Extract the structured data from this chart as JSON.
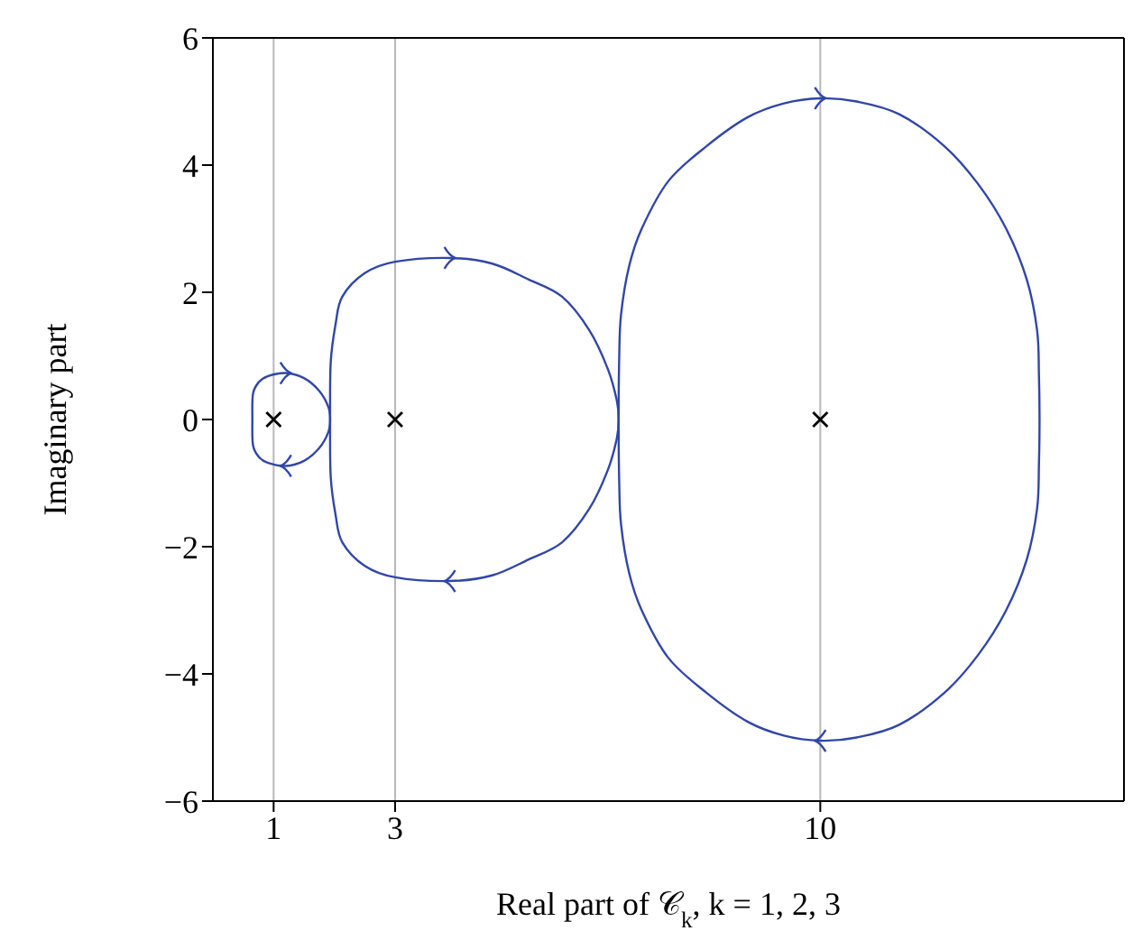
{
  "chart_data": {
    "type": "scatter",
    "xlabel": "Real part of 𝒞$_{k}$, k = 1, 2, 3",
    "ylabel": "Imaginary part",
    "xlim": [
      0,
      15
    ],
    "xticks": [
      1,
      3,
      10
    ],
    "ylim": [
      -6,
      6
    ],
    "yticks": [
      -6,
      -4,
      -2,
      0,
      2,
      4,
      6
    ],
    "grid": "x",
    "marker": "cross",
    "series": [
      {
        "color": "#000000",
        "x": [
          1,
          3,
          10
        ],
        "values": [
          0,
          0,
          0
        ]
      }
    ]
  }
}
